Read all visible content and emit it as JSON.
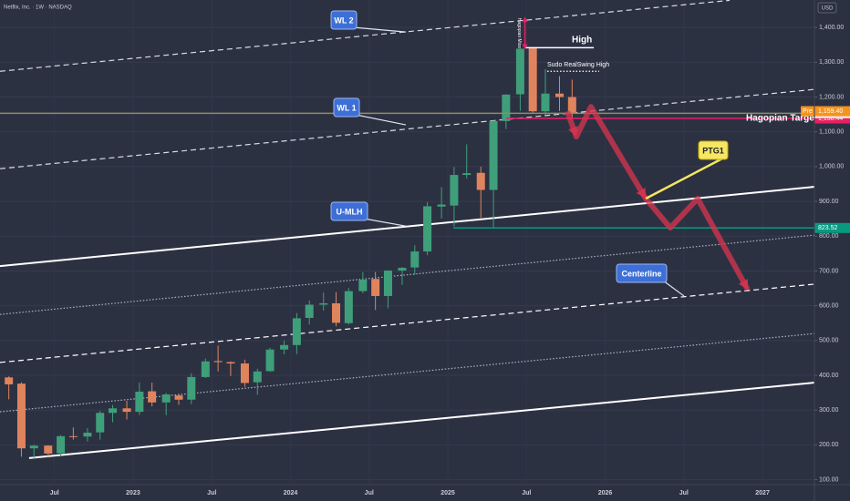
{
  "chart_data": {
    "type": "candlestick",
    "title": "Netflix, Inc. · 1W · NASDAQ",
    "currency": "USD",
    "up_color": "#3f9f7a",
    "down_color": "#e0845e",
    "x": [
      2022.21,
      2022.29,
      2022.37,
      2022.46,
      2022.54,
      2022.62,
      2022.71,
      2022.79,
      2022.87,
      2022.96,
      2023.04,
      2023.12,
      2023.21,
      2023.29,
      2023.37,
      2023.46,
      2023.54,
      2023.62,
      2023.71,
      2023.79,
      2023.87,
      2023.96,
      2024.04,
      2024.12,
      2024.21,
      2024.29,
      2024.37,
      2024.46,
      2024.54,
      2024.62,
      2024.71,
      2024.79,
      2024.87,
      2024.96,
      2025.04,
      2025.12,
      2025.21,
      2025.29,
      2025.37,
      2025.46,
      2025.54,
      2025.62,
      2025.71,
      2025.79
    ],
    "open": [
      394,
      376,
      190,
      198,
      176,
      225,
      224,
      236,
      292,
      305,
      295,
      354,
      322,
      342,
      330,
      395,
      441,
      438,
      434,
      380,
      412,
      474,
      487,
      565,
      603,
      607,
      550,
      642,
      677,
      628,
      701,
      710,
      756,
      885,
      888,
      976,
      982,
      933,
      1131,
      1208,
      1340,
      1159,
      1210,
      1200
    ],
    "high": [
      397,
      380,
      200,
      199,
      228,
      250,
      248,
      298,
      315,
      327,
      379,
      379,
      349,
      347,
      406,
      448,
      485,
      440,
      445,
      419,
      479,
      500,
      579,
      615,
      638,
      639,
      651,
      697,
      697,
      702,
      711,
      774,
      898,
      941,
      999,
      1064,
      1000,
      1133,
      1208,
      1341,
      1341,
      1280,
      1260,
      1250
    ],
    "low": [
      331,
      166,
      162,
      163,
      168,
      215,
      210,
      215,
      265,
      273,
      286,
      311,
      285,
      315,
      317,
      392,
      411,
      398,
      367,
      344,
      410,
      460,
      461,
      546,
      586,
      541,
      546,
      636,
      588,
      593,
      660,
      689,
      745,
      851,
      828,
      966,
      853,
      822,
      1108,
      1160,
      1153,
      1148,
      1160,
      1140
    ],
    "close": [
      374,
      190,
      198,
      175,
      225,
      224,
      235,
      292,
      305,
      295,
      353,
      322,
      345,
      330,
      395,
      440,
      438,
      434,
      378,
      411,
      474,
      487,
      564,
      603,
      607,
      551,
      642,
      675,
      628,
      701,
      709,
      756,
      886,
      891,
      976,
      981,
      933,
      1131,
      1207,
      1339,
      1159,
      1210,
      1200,
      1153
    ],
    "xlim": [
      2022.154,
      2027.33
    ],
    "ylim": [
      91,
      1479
    ],
    "xticks": [
      {
        "value": 2022.5,
        "label": "Jul"
      },
      2023,
      {
        "value": 2023.5,
        "label": "Jul"
      },
      2024,
      {
        "value": 2024.5,
        "label": "Jul"
      },
      2025,
      {
        "value": 2025.5,
        "label": "Jul"
      },
      2026,
      {
        "value": 2026.5,
        "label": "Jul"
      },
      2027
    ],
    "yticks": [
      {
        "value": 100,
        "label": "100.00"
      },
      {
        "value": 200,
        "label": "200.00"
      },
      {
        "value": 300,
        "label": "300.00"
      },
      {
        "value": 400,
        "label": "400.00"
      },
      {
        "value": 500,
        "label": "500.00"
      },
      {
        "value": 600,
        "label": "600.00"
      },
      {
        "value": 700,
        "label": "700.00"
      },
      {
        "value": 800,
        "label": "800.00"
      },
      {
        "value": 900,
        "label": "900.00"
      },
      {
        "value": 1000,
        "label": "1,000.00"
      },
      {
        "value": 1100,
        "label": "1,100.00"
      },
      {
        "value": 1200,
        "label": "1,200.00"
      },
      {
        "value": 1300,
        "label": "1,300.00"
      },
      {
        "value": 1400,
        "label": "1,400.00"
      }
    ],
    "grid": true,
    "lines": [
      {
        "style": "dashed",
        "color": "#d8dce6",
        "x": [
          2022.154,
          2026.791
        ],
        "y": [
          1274,
          1478
        ]
      },
      {
        "style": "dashed",
        "color": "#d8dce6",
        "x": [
          2022.154,
          2027.33
        ],
        "y": [
          994,
          1222
        ]
      },
      {
        "style": "solid",
        "color": "#ffffff",
        "x": [
          2022.154,
          2027.33
        ],
        "y": [
          714,
          942
        ]
      },
      {
        "style": "dotted",
        "color": "#aeb3c2",
        "x": [
          2022.154,
          2027.33
        ],
        "y": [
          575,
          803
        ]
      },
      {
        "style": "dashed",
        "color": "#ffffff",
        "x": [
          2022.154,
          2027.33
        ],
        "y": [
          437,
          662
        ]
      },
      {
        "style": "dotted",
        "color": "#aeb3c2",
        "x": [
          2022.154,
          2027.33
        ],
        "y": [
          295,
          520
        ]
      },
      {
        "style": "solid",
        "color": "#ffffff",
        "x": [
          2022.339,
          2027.33
        ],
        "y": [
          162,
          379
        ]
      }
    ],
    "levels": [
      {
        "label": "High",
        "value": 1342,
        "x": [
          2025.487,
          2025.928
        ],
        "color": "#ffffff",
        "style": "solid"
      },
      {
        "label": "Sudo RealSwing High",
        "value": 1274,
        "x": [
          2025.632,
          2025.962
        ],
        "color": "#ffffff",
        "style": "dotted"
      },
      {
        "label": "Hagopian Target",
        "value": 1138.44,
        "value_label": "1,138.44",
        "x": [
          2025.371,
          2027.33
        ],
        "color": "#e91e63",
        "style": "solid"
      },
      {
        "value": 823.52,
        "value_label": "823.52",
        "x": [
          2025.035,
          2027.33
        ],
        "color": "#089981",
        "style": "solid"
      },
      {
        "value": 1153.32,
        "value_label": "1,153.32",
        "x": [
          2022.154,
          2027.33
        ],
        "color": "#8d8f5e",
        "style": "solid"
      },
      {
        "badge": "Pre",
        "value": 1159.4,
        "value_label": "1,159.40",
        "color": "#f7931a"
      }
    ],
    "projection": {
      "color": "#d9344f",
      "x": [
        2025.759,
        2025.817,
        2025.91,
        2026.258,
        2026.414,
        2026.588,
        2026.907
      ],
      "y": [
        1159,
        1086,
        1172,
        908,
        824,
        908,
        646
      ]
    },
    "miss": {
      "label": "Hagopian Miss",
      "x": 2025.49,
      "y": [
        1342,
        1426
      ],
      "color": "#e91e63"
    },
    "callouts": [
      {
        "text": "WL 2",
        "x": 2024.733,
        "y": 1387,
        "color": "#3d6fd6"
      },
      {
        "text": "WL 1",
        "x": 2024.733,
        "y": 1120,
        "color": "#3d6fd6"
      },
      {
        "text": "U-MLH",
        "x": 2024.733,
        "y": 829,
        "color": "#3d6fd6"
      },
      {
        "text": "Centerline",
        "x": 2026.501,
        "y": 628,
        "color": "#3d6fd6"
      },
      {
        "text": "PTG1",
        "x": 2026.258,
        "y": 908,
        "color": "#f5e663"
      }
    ]
  }
}
